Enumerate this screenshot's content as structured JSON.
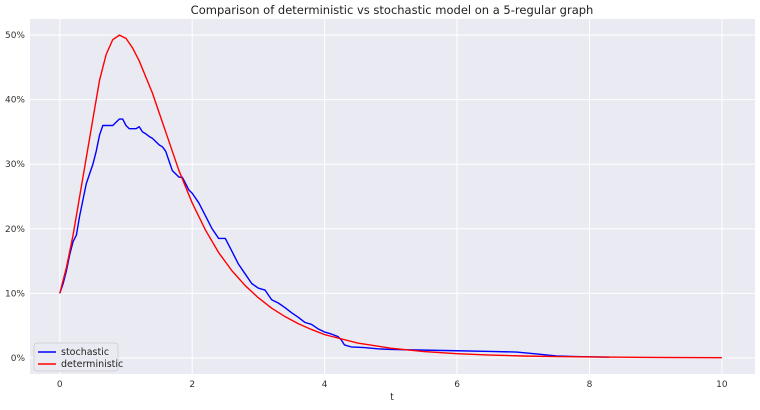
{
  "chart_data": {
    "type": "line",
    "title": "Comparison of deterministic vs stochastic model on a 5-regular graph",
    "xlabel": "t",
    "ylabel": "",
    "xlim": [
      -0.45,
      10.5
    ],
    "ylim": [
      -0.025,
      0.525
    ],
    "xticks": [
      0,
      2,
      4,
      6,
      8,
      10
    ],
    "xtick_labels": [
      "0",
      "2",
      "4",
      "6",
      "8",
      "10"
    ],
    "yticks": [
      0,
      0.1,
      0.2,
      0.3,
      0.4,
      0.5
    ],
    "ytick_labels": [
      "0%",
      "10%",
      "20%",
      "30%",
      "40%",
      "50%"
    ],
    "grid": true,
    "legend_position": "lower-left",
    "colors": {
      "background": "#eaeaf2",
      "grid": "#ffffff",
      "stochastic": "#0000ff",
      "deterministic": "#ff0000"
    },
    "series": [
      {
        "name": "stochastic",
        "color": "#0000ff",
        "x": [
          0,
          0.05,
          0.1,
          0.15,
          0.2,
          0.25,
          0.3,
          0.35,
          0.4,
          0.45,
          0.5,
          0.55,
          0.6,
          0.65,
          0.7,
          0.75,
          0.8,
          0.85,
          0.9,
          0.95,
          1.0,
          1.05,
          1.1,
          1.15,
          1.2,
          1.25,
          1.3,
          1.35,
          1.4,
          1.45,
          1.5,
          1.55,
          1.6,
          1.65,
          1.7,
          1.75,
          1.8,
          1.85,
          1.9,
          1.95,
          2.0,
          2.1,
          2.2,
          2.3,
          2.4,
          2.5,
          2.6,
          2.7,
          2.8,
          2.9,
          3.0,
          3.1,
          3.2,
          3.3,
          3.4,
          3.5,
          3.6,
          3.7,
          3.8,
          3.9,
          4.0,
          4.1,
          4.2,
          4.25,
          4.3,
          4.4,
          4.6,
          4.8,
          5.0,
          5.5,
          6.0,
          6.5,
          6.9,
          7.2,
          7.5,
          7.8,
          8.3
        ],
        "values": [
          0.1,
          0.115,
          0.135,
          0.16,
          0.18,
          0.19,
          0.22,
          0.245,
          0.27,
          0.285,
          0.3,
          0.32,
          0.345,
          0.36,
          0.36,
          0.36,
          0.36,
          0.365,
          0.37,
          0.37,
          0.36,
          0.355,
          0.355,
          0.355,
          0.358,
          0.35,
          0.347,
          0.343,
          0.34,
          0.335,
          0.33,
          0.327,
          0.32,
          0.305,
          0.29,
          0.285,
          0.28,
          0.28,
          0.27,
          0.26,
          0.255,
          0.24,
          0.22,
          0.2,
          0.185,
          0.185,
          0.165,
          0.145,
          0.13,
          0.115,
          0.108,
          0.105,
          0.09,
          0.085,
          0.078,
          0.07,
          0.063,
          0.055,
          0.052,
          0.045,
          0.04,
          0.037,
          0.033,
          0.028,
          0.02,
          0.017,
          0.016,
          0.014,
          0.013,
          0.012,
          0.011,
          0.01,
          0.009,
          0.006,
          0.003,
          0.002,
          0.001
        ]
      },
      {
        "name": "deterministic",
        "color": "#ff0000",
        "x": [
          0,
          0.1,
          0.2,
          0.3,
          0.4,
          0.5,
          0.6,
          0.7,
          0.8,
          0.9,
          1.0,
          1.1,
          1.2,
          1.3,
          1.4,
          1.5,
          1.6,
          1.7,
          1.8,
          1.9,
          2.0,
          2.2,
          2.4,
          2.6,
          2.8,
          3.0,
          3.2,
          3.4,
          3.6,
          3.8,
          4.0,
          4.5,
          5.0,
          5.5,
          6.0,
          6.5,
          7.0,
          7.5,
          8.0,
          8.5,
          9.0,
          9.5,
          10.0
        ],
        "values": [
          0.1,
          0.14,
          0.19,
          0.25,
          0.31,
          0.37,
          0.43,
          0.47,
          0.493,
          0.5,
          0.495,
          0.48,
          0.46,
          0.435,
          0.41,
          0.38,
          0.35,
          0.32,
          0.29,
          0.265,
          0.24,
          0.198,
          0.163,
          0.135,
          0.112,
          0.093,
          0.077,
          0.064,
          0.053,
          0.044,
          0.036,
          0.023,
          0.015,
          0.0098,
          0.0065,
          0.0043,
          0.0029,
          0.002,
          0.0014,
          0.001,
          0.0007,
          0.0005,
          0.0003
        ]
      }
    ]
  }
}
